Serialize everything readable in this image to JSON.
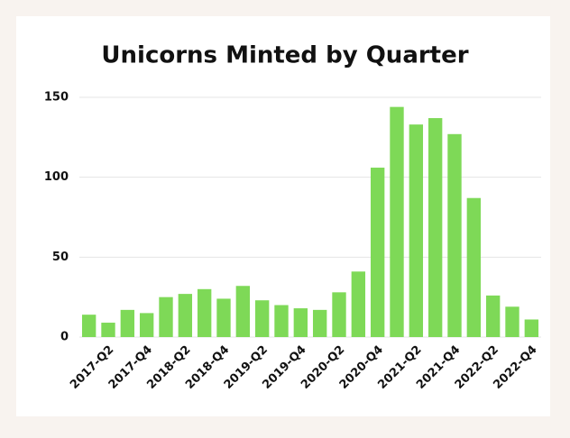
{
  "chart_data": {
    "type": "bar",
    "title": "Unicorns Minted by Quarter",
    "categories": [
      null,
      "2017-Q2",
      null,
      "2017-Q4",
      null,
      "2018-Q2",
      null,
      "2018-Q4",
      null,
      "2019-Q2",
      null,
      "2019-Q4",
      null,
      "2020-Q2",
      null,
      "2020-Q4",
      null,
      "2021-Q2",
      null,
      "2021-Q4",
      null,
      "2022-Q2",
      null,
      "2022-Q4"
    ],
    "values": [
      14,
      9,
      17,
      15,
      25,
      27,
      30,
      24,
      32,
      23,
      20,
      18,
      17,
      28,
      41,
      106,
      144,
      133,
      137,
      127,
      87,
      26,
      19,
      11
    ],
    "color": "#7ed957",
    "ylim": [
      0,
      150
    ],
    "yticks": [
      0,
      50,
      100,
      150
    ],
    "grid": true
  }
}
